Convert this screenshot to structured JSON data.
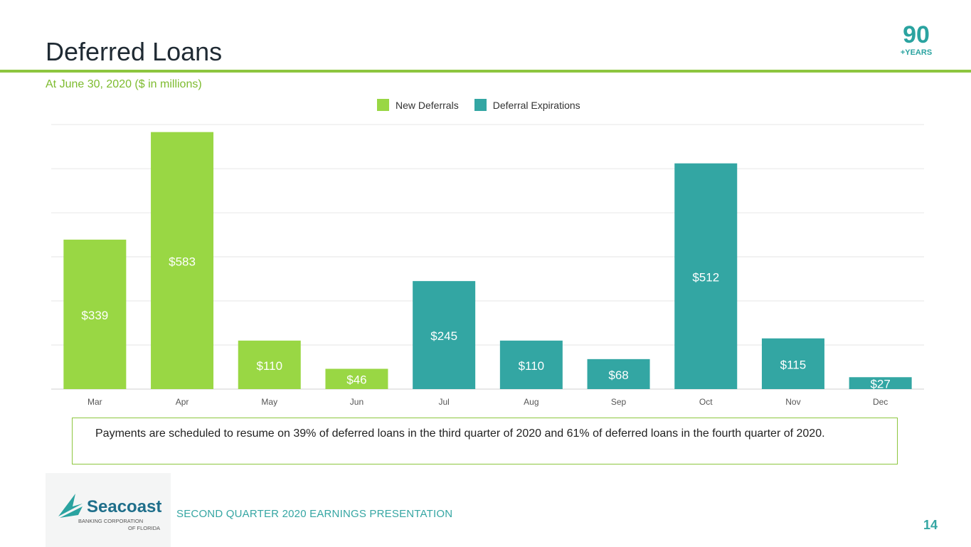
{
  "header": {
    "title": "Deferred Loans",
    "subtitle": "At June 30, 2020 ($ in millions)",
    "badge_number": "90",
    "badge_text": "+YEARS"
  },
  "colors": {
    "new": "#99d744",
    "expire": "#33a6a3",
    "accent": "#8dc63f"
  },
  "chart_data": {
    "type": "bar",
    "categories": [
      "Mar",
      "Apr",
      "May",
      "Jun",
      "Jul",
      "Aug",
      "Sep",
      "Oct",
      "Nov",
      "Dec"
    ],
    "values": [
      339,
      583,
      110,
      46,
      245,
      110,
      68,
      512,
      115,
      27
    ],
    "labels": [
      "$339",
      "$583",
      "$110",
      "$46",
      "$245",
      "$110",
      "$68",
      "$512",
      "$115",
      "$27"
    ],
    "series_of_bar": [
      "New Deferrals",
      "New Deferrals",
      "New Deferrals",
      "New Deferrals",
      "Deferral Expirations",
      "Deferral Expirations",
      "Deferral Expirations",
      "Deferral Expirations",
      "Deferral Expirations",
      "Deferral Expirations"
    ],
    "legend": [
      "New Deferrals",
      "Deferral Expirations"
    ],
    "legend_position": "top-center",
    "ylim": [
      0,
      600
    ],
    "gridlines": true
  },
  "note": "Payments are scheduled to resume on 39% of deferred loans in the third quarter of 2020 and 61% of deferred loans in the fourth quarter of 2020.",
  "footer": {
    "brand": "Seacoast",
    "brand_line1": "BANKING CORPORATION",
    "brand_line2": "OF FLORIDA",
    "text": "SECOND QUARTER 2020 EARNINGS PRESENTATION",
    "page_number": "14"
  }
}
